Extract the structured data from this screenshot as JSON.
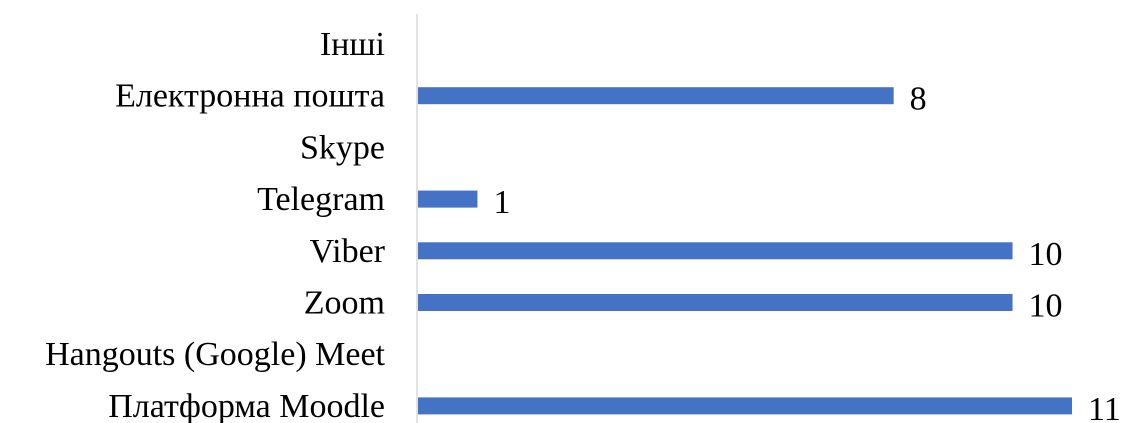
{
  "chart_data": {
    "type": "bar",
    "orientation": "horizontal",
    "categories": [
      "Інші",
      "Електронна пошта",
      "Skype",
      "Telegram",
      "Viber",
      "Zoom",
      "Hangouts (Google) Meet",
      "Платформа Moodle"
    ],
    "values": [
      null,
      8,
      null,
      1,
      10,
      10,
      null,
      11
    ],
    "data_labels": [
      "",
      "8",
      "",
      "1",
      "10",
      "10",
      "",
      "11"
    ],
    "title": "",
    "xlabel": "",
    "ylabel": "",
    "xlim": [
      0,
      11
    ],
    "grid": false,
    "legend": "none",
    "colors": {
      "bar": "#4472C4",
      "axis": "#D9D9D9",
      "text": "#000000"
    }
  }
}
